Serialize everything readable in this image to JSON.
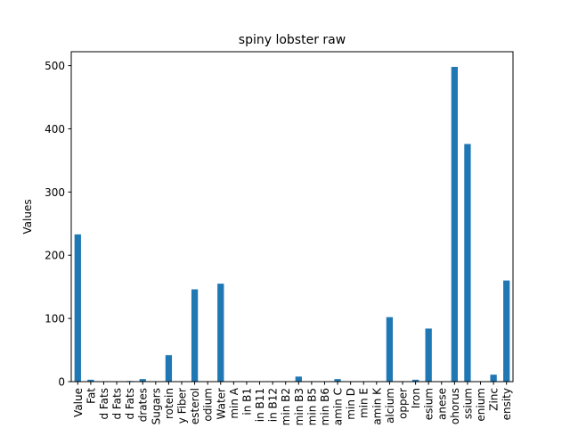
{
  "chart_data": {
    "type": "bar",
    "title": "spiny lobster raw",
    "xlabel": "",
    "ylabel": "Values",
    "ylim": [
      0,
      522
    ],
    "yticks": [
      0,
      100,
      200,
      300,
      400,
      500
    ],
    "grid": false,
    "bar_color": "#1f77b4",
    "categories": [
      "Value",
      "Fat",
      "d Fats",
      "d Fats",
      "d Fats",
      "drates",
      "Sugars",
      "rotein",
      "y Fiber",
      "esterol",
      "odium",
      "Water",
      "min A",
      "in B1",
      "in B11",
      "in B12",
      "min B2",
      "min B3",
      "min B5",
      "min B6",
      "amin C",
      "min D",
      "min E",
      "amin K",
      "alcium",
      "opper",
      "Iron",
      "esium",
      "anese",
      "ohorus",
      "ssium",
      "enium",
      "Zinc",
      "ensity"
    ],
    "values": [
      233,
      3,
      0.5,
      0.5,
      1,
      4,
      0,
      42,
      0,
      146,
      0,
      155,
      0,
      0,
      0,
      0,
      0,
      8,
      0,
      0,
      4,
      0,
      0,
      0,
      102,
      0,
      3,
      84,
      0,
      498,
      376,
      0,
      11,
      160
    ]
  }
}
